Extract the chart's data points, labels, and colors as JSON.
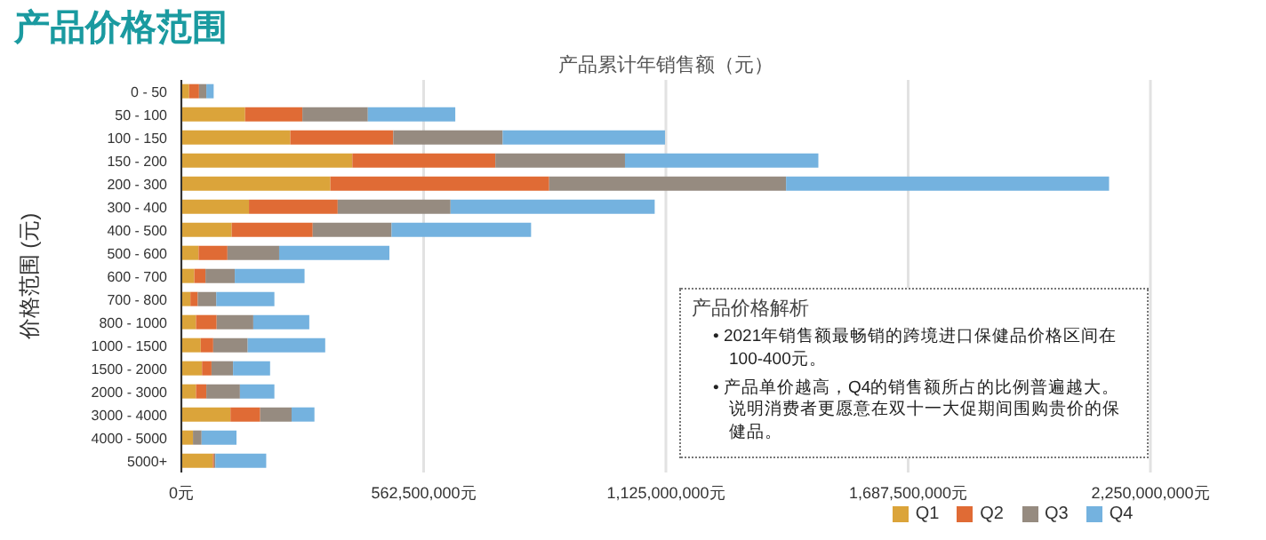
{
  "chart_data": {
    "type": "bar",
    "orientation": "horizontal",
    "stacked": true,
    "title": "产品价格范围",
    "subtitle": "产品累计年销售额（元）",
    "ylabel": "价格范围 (元)",
    "categories": [
      "0 - 50",
      "50 - 100",
      "100 - 150",
      "150 - 200",
      "200 - 300",
      "300 - 400",
      "400 - 500",
      "500 - 600",
      "600 - 700",
      "700 - 800",
      "800 - 1000",
      "1000 - 1500",
      "1500 - 2000",
      "2000 - 3000",
      "3000 - 4000",
      "4000 - 5000",
      "5000+"
    ],
    "series": [
      {
        "name": "Q1",
        "color": "#dba43a",
        "values": [
          18000000,
          148000000,
          253000000,
          397000000,
          346000000,
          157000000,
          117000000,
          40000000,
          30000000,
          21000000,
          34000000,
          45000000,
          48000000,
          34000000,
          114000000,
          27000000,
          73000000
        ]
      },
      {
        "name": "Q2",
        "color": "#e06b35",
        "values": [
          23000000,
          133000000,
          239000000,
          332000000,
          508000000,
          206000000,
          188000000,
          67000000,
          26000000,
          17000000,
          48000000,
          29000000,
          22000000,
          24000000,
          69000000,
          0,
          3000000
        ]
      },
      {
        "name": "Q3",
        "color": "#968b80",
        "values": [
          17000000,
          152000000,
          254000000,
          301000000,
          550000000,
          262000000,
          183000000,
          120000000,
          68000000,
          43000000,
          85000000,
          80000000,
          50000000,
          78000000,
          73000000,
          20000000,
          3000000
        ]
      },
      {
        "name": "Q4",
        "color": "#74b2df",
        "values": [
          17000000,
          203000000,
          377000000,
          449000000,
          750000000,
          474000000,
          324000000,
          256000000,
          162000000,
          135000000,
          130000000,
          180000000,
          86000000,
          80000000,
          53000000,
          81000000,
          118000000
        ]
      }
    ],
    "xlim": [
      0,
      2250000000
    ],
    "xticks": [
      {
        "value": 0,
        "label": "0元"
      },
      {
        "value": 562500000,
        "label": "562,500,000元"
      },
      {
        "value": 1125000000,
        "label": "1,125,000,000元"
      },
      {
        "value": 1687500000,
        "label": "1,687,500,000元"
      },
      {
        "value": 2250000000,
        "label": "2,250,000,000元"
      }
    ],
    "grid": "x",
    "legend": "bottom",
    "annotations": [
      "产品价格解析",
      "• 2021年销售额最畅销的跨境进口保健品价格区间在100-400元。",
      "• 产品单价越高，Q4的销售额所占的比例普遍越大。说明消费者更愿意在双十一大促期间围购贵价的保健品。"
    ]
  }
}
